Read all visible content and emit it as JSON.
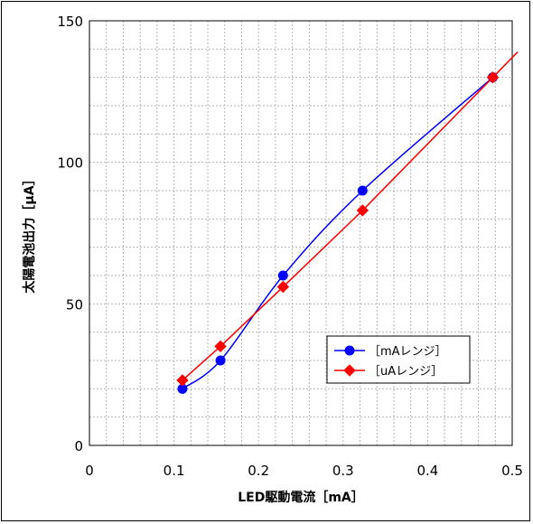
{
  "chart_data": {
    "type": "line",
    "xlabel": "LED駆動電流［mA］",
    "ylabel": "太陽電池出力［μA］",
    "xlim": [
      0,
      0.5
    ],
    "ylim": [
      0,
      150
    ],
    "x_ticks": [
      "0",
      "0.1",
      "0.2",
      "0.3",
      "0.4",
      "0.5"
    ],
    "y_ticks": [
      "0",
      "50",
      "100",
      "150"
    ],
    "grid": true,
    "legend_position": "lower-right",
    "series": [
      {
        "name": "［mAレンジ］",
        "color": "#0000ff",
        "marker": "circle",
        "smooth": true,
        "x": [
          0.11,
          0.155,
          0.229,
          0.323,
          0.477
        ],
        "y": [
          20,
          30,
          60,
          90,
          130
        ]
      },
      {
        "name": "［uAレンジ］",
        "color": "#ff0000",
        "marker": "diamond",
        "smooth": false,
        "trendline_to_edge": true,
        "x": [
          0.11,
          0.155,
          0.229,
          0.323,
          0.477
        ],
        "y": [
          23,
          35,
          56,
          83,
          130
        ]
      }
    ]
  }
}
